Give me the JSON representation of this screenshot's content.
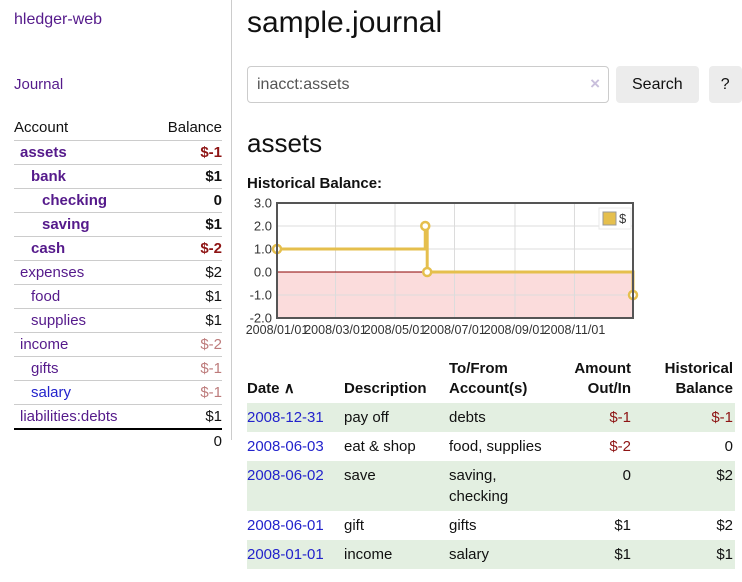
{
  "app": {
    "brand": "hledger-web",
    "nav": {
      "journal_label": "Journal"
    }
  },
  "colors": {
    "link_purple": "#551a8b",
    "link_blue": "#2323cc",
    "negative_strong": "#8e1414",
    "negative_soft": "#bd7b7b",
    "row_highlight_green": "#e3efe1",
    "chart_gold": "#e5bf4d",
    "chart_negative_bg": "#fbdcdc",
    "chart_zero_line": "#8b0000"
  },
  "sidebar": {
    "columns": {
      "account": "Account",
      "balance": "Balance"
    },
    "accounts": [
      {
        "name": "assets",
        "balance": "$-1"
      },
      {
        "name": "bank",
        "balance": "$1"
      },
      {
        "name": "checking",
        "balance": "0"
      },
      {
        "name": "saving",
        "balance": "$1"
      },
      {
        "name": "cash",
        "balance": "$-2"
      },
      {
        "name": "expenses",
        "balance": "$2"
      },
      {
        "name": "food",
        "balance": "$1"
      },
      {
        "name": "supplies",
        "balance": "$1"
      },
      {
        "name": "income",
        "balance": "$-2"
      },
      {
        "name": "gifts",
        "balance": "$-1"
      },
      {
        "name": "salary",
        "balance": "$-1"
      },
      {
        "name": "liabilities:debts",
        "balance": "$1"
      }
    ],
    "total": "0"
  },
  "main": {
    "title": "sample.journal",
    "search": {
      "value": "inacct:assets",
      "clear_icon": "×",
      "search_button": "Search",
      "help_button": "?"
    },
    "account_heading": "assets",
    "chart_label": "Historical Balance:"
  },
  "chart_data": {
    "type": "line",
    "step": true,
    "title": "Historical Balance:",
    "series": [
      {
        "name": "$",
        "points": [
          [
            "2008-01-01",
            1
          ],
          [
            "2008-06-01",
            2
          ],
          [
            "2008-06-03",
            0
          ],
          [
            "2008-12-31",
            -1
          ]
        ]
      }
    ],
    "xlim": [
      "2008-01-01",
      "2008-12-31"
    ],
    "ylim": [
      -2,
      3
    ],
    "yticks": [
      3,
      2,
      1,
      0,
      -1,
      -2
    ],
    "xticks": [
      "2008/01/01",
      "2008/03/01",
      "2008/05/01",
      "2008/07/01",
      "2008/09/01",
      "2008/11/01"
    ],
    "legend_position": "top-right",
    "grid": true,
    "negative_region_shaded": true
  },
  "register": {
    "headers": {
      "date": "Date",
      "sort_icon": "∧",
      "description": "Description",
      "accounts": "To/From Account(s)",
      "amount": "Amount Out/In",
      "balance": "Historical Balance"
    },
    "rows": [
      {
        "date": "2008-12-31",
        "description": "pay off",
        "accounts": "debts",
        "amount": "$-1",
        "balance": "$-1"
      },
      {
        "date": "2008-06-03",
        "description": "eat & shop",
        "accounts": "food, supplies",
        "amount": "$-2",
        "balance": "0"
      },
      {
        "date": "2008-06-02",
        "description": "save",
        "accounts": "saving, checking",
        "amount": "0",
        "balance": "$2"
      },
      {
        "date": "2008-06-01",
        "description": "gift",
        "accounts": "gifts",
        "amount": "$1",
        "balance": "$2"
      },
      {
        "date": "2008-01-01",
        "description": "income",
        "accounts": "salary",
        "amount": "$1",
        "balance": "$1"
      }
    ]
  }
}
